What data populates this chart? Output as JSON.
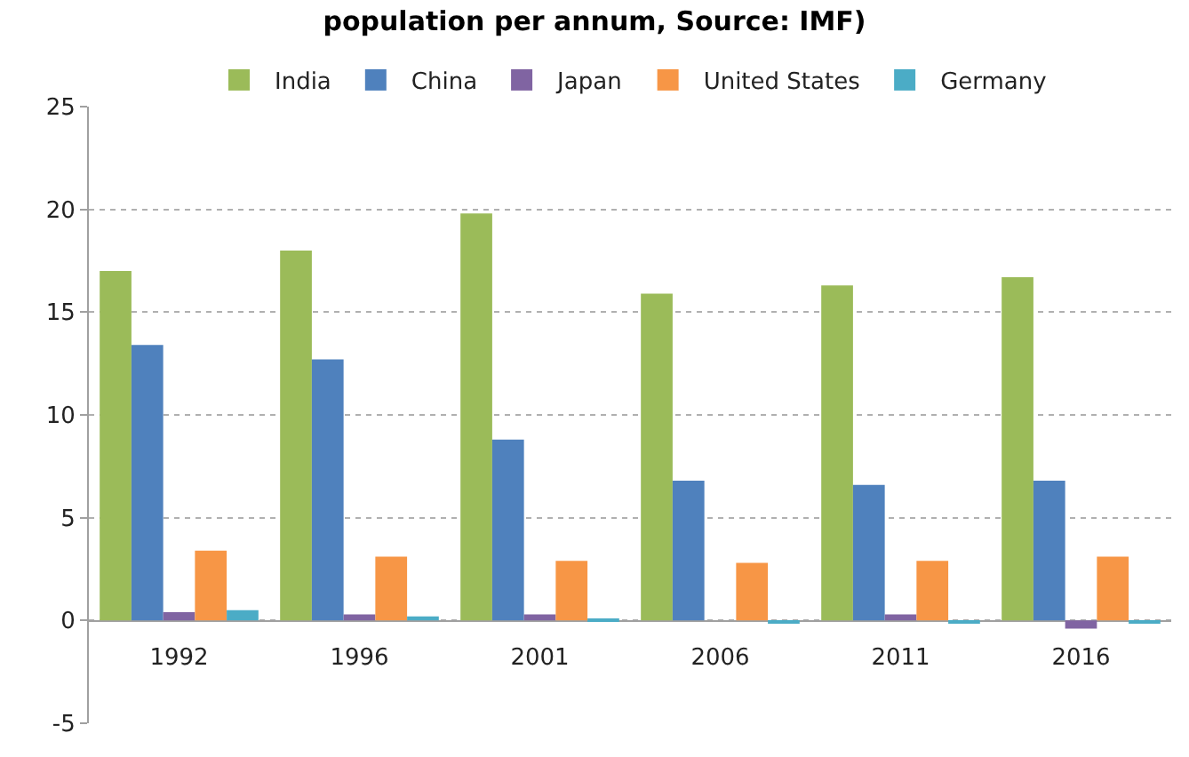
{
  "chart_data": {
    "type": "bar",
    "title": "population per annum, Source: IMF)",
    "categories": [
      "1992",
      "1996",
      "2001",
      "2006",
      "2011",
      "2016"
    ],
    "series": [
      {
        "name": "India",
        "color": "#9bbb59",
        "values": [
          17.0,
          18.0,
          19.8,
          15.9,
          16.3,
          16.7
        ]
      },
      {
        "name": "China",
        "color": "#4f81bd",
        "values": [
          13.4,
          12.7,
          8.8,
          6.8,
          6.6,
          6.8
        ]
      },
      {
        "name": "Japan",
        "color": "#8064a2",
        "values": [
          0.4,
          0.3,
          0.3,
          0,
          0.3,
          -0.4
        ]
      },
      {
        "name": "United States",
        "color": "#f79646",
        "values": [
          3.4,
          3.1,
          2.9,
          2.8,
          2.9,
          3.1
        ]
      },
      {
        "name": "Germany",
        "color": "#4bacc6",
        "values": [
          0.5,
          0.2,
          0.1,
          -0.1,
          -0.1,
          -0.1
        ]
      }
    ],
    "ylim": [
      -5,
      25
    ],
    "yticks": [
      -5,
      0,
      5,
      10,
      15,
      20,
      25
    ],
    "grid": "y",
    "legend": "top"
  }
}
